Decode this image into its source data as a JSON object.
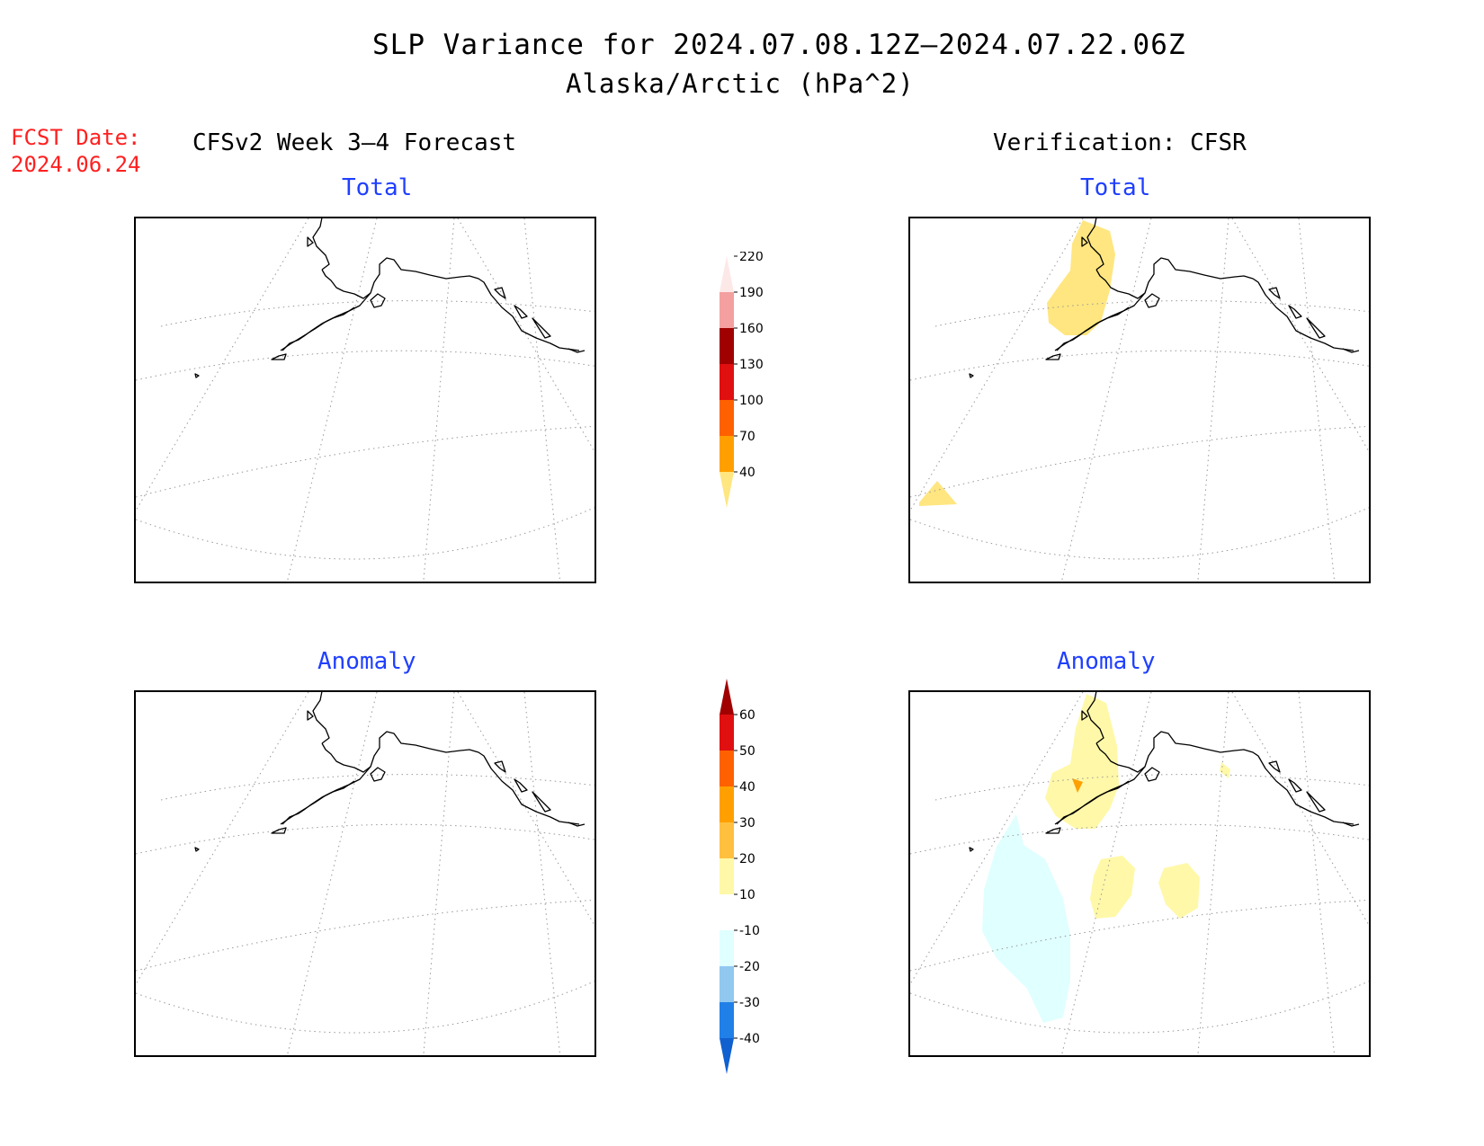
{
  "header": {
    "title": "SLP Variance for 2024.07.08.12Z—2024.07.22.06Z",
    "subtitle": "Alaska/Arctic (hPa^2)"
  },
  "fcst_date": {
    "label": "FCST Date:",
    "value": "2024.06.24"
  },
  "columns": {
    "left": "CFSv2 Week 3—4 Forecast",
    "right": "Verification: CFSR"
  },
  "panels": {
    "fcst_total": {
      "title": "Total"
    },
    "verif_total": {
      "title": "Total"
    },
    "fcst_anom": {
      "title": "Anomaly"
    },
    "verif_anom": {
      "title": "Anomaly"
    }
  },
  "colorbar_total": {
    "levels": [
      "40",
      "70",
      "100",
      "130",
      "160",
      "190",
      "220"
    ],
    "colors": [
      "#ffe680",
      "#ffa000",
      "#ff6000",
      "#e01010",
      "#a00000",
      "#f4a0a0",
      "#fde8e8"
    ]
  },
  "colorbar_anom": {
    "levels": [
      "-40",
      "-30",
      "-20",
      "-10",
      "10",
      "20",
      "30",
      "40",
      "50",
      "60"
    ],
    "colors": [
      "#1060d0",
      "#2080e8",
      "#90c8f0",
      "#e0ffff",
      "#ffffff",
      "#fff8a8",
      "#ffc040",
      "#ffa000",
      "#ff6000",
      "#e01010",
      "#a00000"
    ]
  },
  "shading_colors": {
    "total_low": "#ffe680",
    "anom_pos_low": "#fff8a8",
    "anom_pos_mid": "#ffa000",
    "anom_neg_low": "#e0ffff"
  }
}
